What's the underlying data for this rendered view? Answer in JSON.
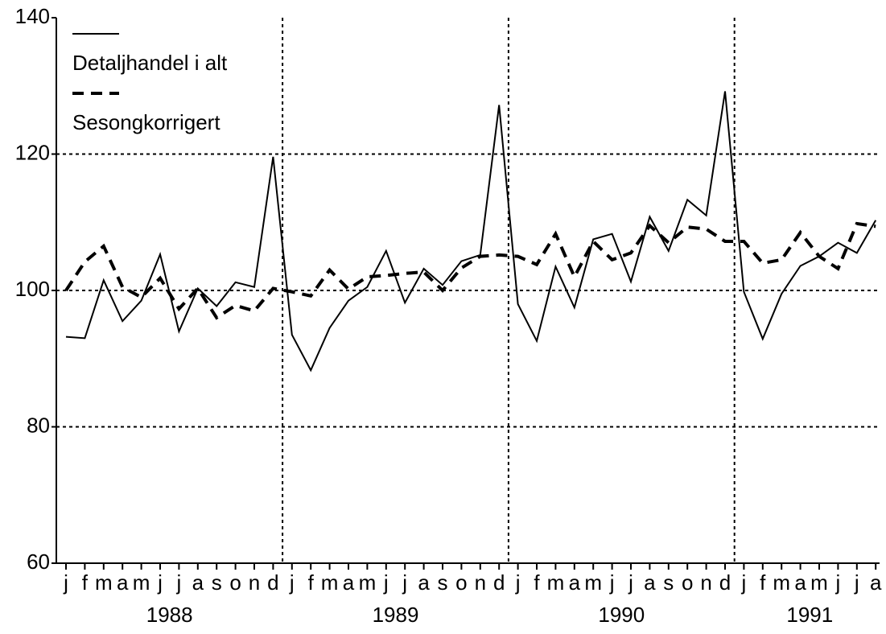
{
  "chart_data": {
    "type": "line",
    "categories": [
      "j",
      "f",
      "m",
      "a",
      "m",
      "j",
      "j",
      "a",
      "s",
      "o",
      "n",
      "d",
      "j",
      "f",
      "m",
      "a",
      "m",
      "j",
      "j",
      "a",
      "s",
      "o",
      "n",
      "d",
      "j",
      "f",
      "m",
      "a",
      "m",
      "j",
      "j",
      "a",
      "s",
      "o",
      "n",
      "d",
      "j",
      "f",
      "m",
      "a",
      "m",
      "j",
      "j",
      "a"
    ],
    "years": [
      "1988",
      "1989",
      "1990",
      "1991"
    ],
    "series": [
      {
        "name": "Detaljhandel i alt",
        "color": "#000000",
        "dash": "solid",
        "values": [
          93.2,
          93,
          101.5,
          95.5,
          98.5,
          105.3,
          94,
          100.3,
          97.7,
          101.2,
          100.5,
          119.6,
          93.5,
          88.3,
          94.5,
          98.5,
          100.5,
          105.8,
          98.2,
          103.2,
          100.8,
          104.3,
          105.2,
          127.2,
          98,
          92.6,
          103.5,
          97.5,
          107.5,
          108.3,
          101.3,
          110.8,
          105.8,
          113.3,
          111,
          129.2,
          99.8,
          92.9,
          99.5,
          103.6,
          105,
          107,
          105.5,
          110.3
        ]
      },
      {
        "name": "Sesongkorrigert",
        "color": "#000000",
        "dash": "dashed",
        "values": [
          100,
          104.2,
          106.5,
          100.5,
          99,
          101.8,
          97.3,
          100.3,
          96,
          97.8,
          97,
          100.3,
          99.8,
          99.2,
          103,
          100.2,
          102,
          102.2,
          102.5,
          102.7,
          100,
          103.3,
          105,
          105.2,
          105,
          103.8,
          108.3,
          102,
          107.2,
          104.5,
          105.5,
          109.5,
          107,
          109.3,
          109,
          107.2,
          107.2,
          104,
          104.5,
          108.5,
          105,
          103.2,
          109.8,
          109.4
        ]
      }
    ],
    "ylim": [
      60,
      140
    ],
    "yticks": [
      60,
      80,
      100,
      120,
      140
    ],
    "grid": true
  }
}
